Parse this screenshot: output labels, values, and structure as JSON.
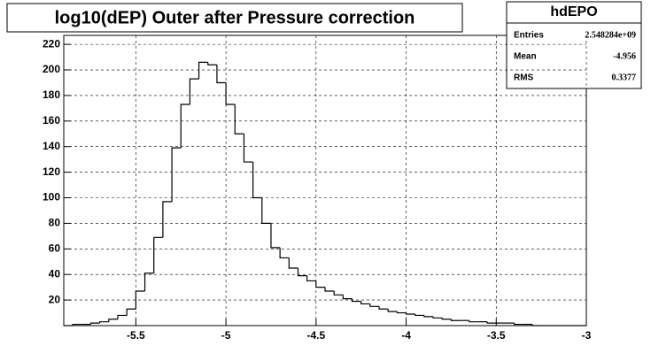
{
  "chart_data": {
    "type": "histogram",
    "title": "log10(dEP) Outer after Pressure correction",
    "stats": {
      "name": "hdEPO",
      "rows": [
        [
          "Entries",
          "2.548284e+09"
        ],
        [
          "Mean",
          "-4.956"
        ],
        [
          "RMS",
          "0.3377"
        ]
      ]
    },
    "bins": [
      -5.9,
      -5.85,
      -5.8,
      -5.75,
      -5.7,
      -5.65,
      -5.6,
      -5.55,
      -5.5,
      -5.45,
      -5.4,
      -5.35,
      -5.3,
      -5.25,
      -5.2,
      -5.15,
      -5.1,
      -5.05,
      -5.0,
      -4.95,
      -4.9,
      -4.85,
      -4.8,
      -4.75,
      -4.7,
      -4.65,
      -4.6,
      -4.55,
      -4.5,
      -4.45,
      -4.4,
      -4.35,
      -4.3,
      -4.25,
      -4.2,
      -4.15,
      -4.1,
      -4.05,
      -4.0,
      -3.95,
      -3.9,
      -3.85,
      -3.8,
      -3.75,
      -3.7,
      -3.65,
      -3.6,
      -3.55,
      -3.5,
      -3.45,
      -3.4,
      -3.35,
      -3.3,
      -3.25,
      -3.2,
      -3.15,
      -3.1,
      -3.05,
      -3.0
    ],
    "values": [
      0,
      1,
      1,
      2,
      3,
      5,
      8,
      13,
      27,
      41,
      69,
      97,
      139,
      173,
      193,
      206,
      204,
      190,
      173,
      150,
      128,
      100,
      80,
      61,
      53,
      45,
      39,
      35,
      30,
      27,
      24,
      21,
      19,
      17,
      15,
      13,
      11,
      10,
      9,
      8,
      7,
      6,
      5,
      4,
      4,
      3,
      3,
      2,
      2,
      2,
      1,
      1,
      0,
      0,
      0,
      0,
      0,
      0
    ],
    "color": "#000000",
    "xlim": [
      -5.9,
      -3.0
    ],
    "ylim": [
      0,
      227
    ],
    "xticks": [
      -5.5,
      -5,
      -4.5,
      -4,
      -3.5,
      -3
    ],
    "yticks": [
      20,
      40,
      60,
      80,
      100,
      120,
      140,
      160,
      180,
      200,
      220
    ],
    "grid": true
  }
}
